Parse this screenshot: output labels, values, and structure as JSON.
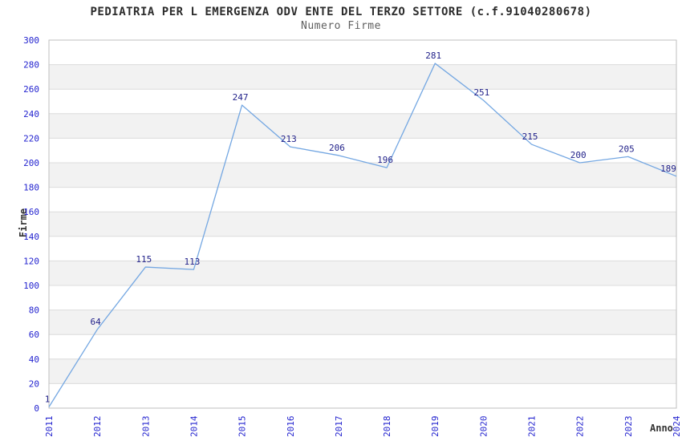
{
  "chart_data": {
    "type": "line",
    "title": "PEDIATRIA PER L EMERGENZA ODV ENTE DEL TERZO SETTORE (c.f.91040280678)",
    "subtitle": "Numero Firme",
    "xlabel": "Anno",
    "ylabel": "Firme",
    "categories": [
      "2011",
      "2012",
      "2013",
      "2014",
      "2015",
      "2016",
      "2017",
      "2018",
      "2019",
      "2020",
      "2021",
      "2022",
      "2023",
      "2024"
    ],
    "values": [
      1,
      64,
      115,
      113,
      247,
      213,
      206,
      196,
      281,
      251,
      215,
      200,
      205,
      189
    ],
    "ylim": [
      0,
      300
    ],
    "ytick_step": 20,
    "grid": true,
    "legend": "none",
    "band_stripes": true,
    "colors": {
      "line": "#74a7e2",
      "point_label": "#22228a",
      "tick_label": "#2323cf",
      "band": "#f2f2f2",
      "gridline": "#dcdcdc",
      "border": "#bfbfbf",
      "title": "#2b2b2b",
      "subtitle": "#5f5f5f",
      "axis_title": "#333333"
    }
  }
}
